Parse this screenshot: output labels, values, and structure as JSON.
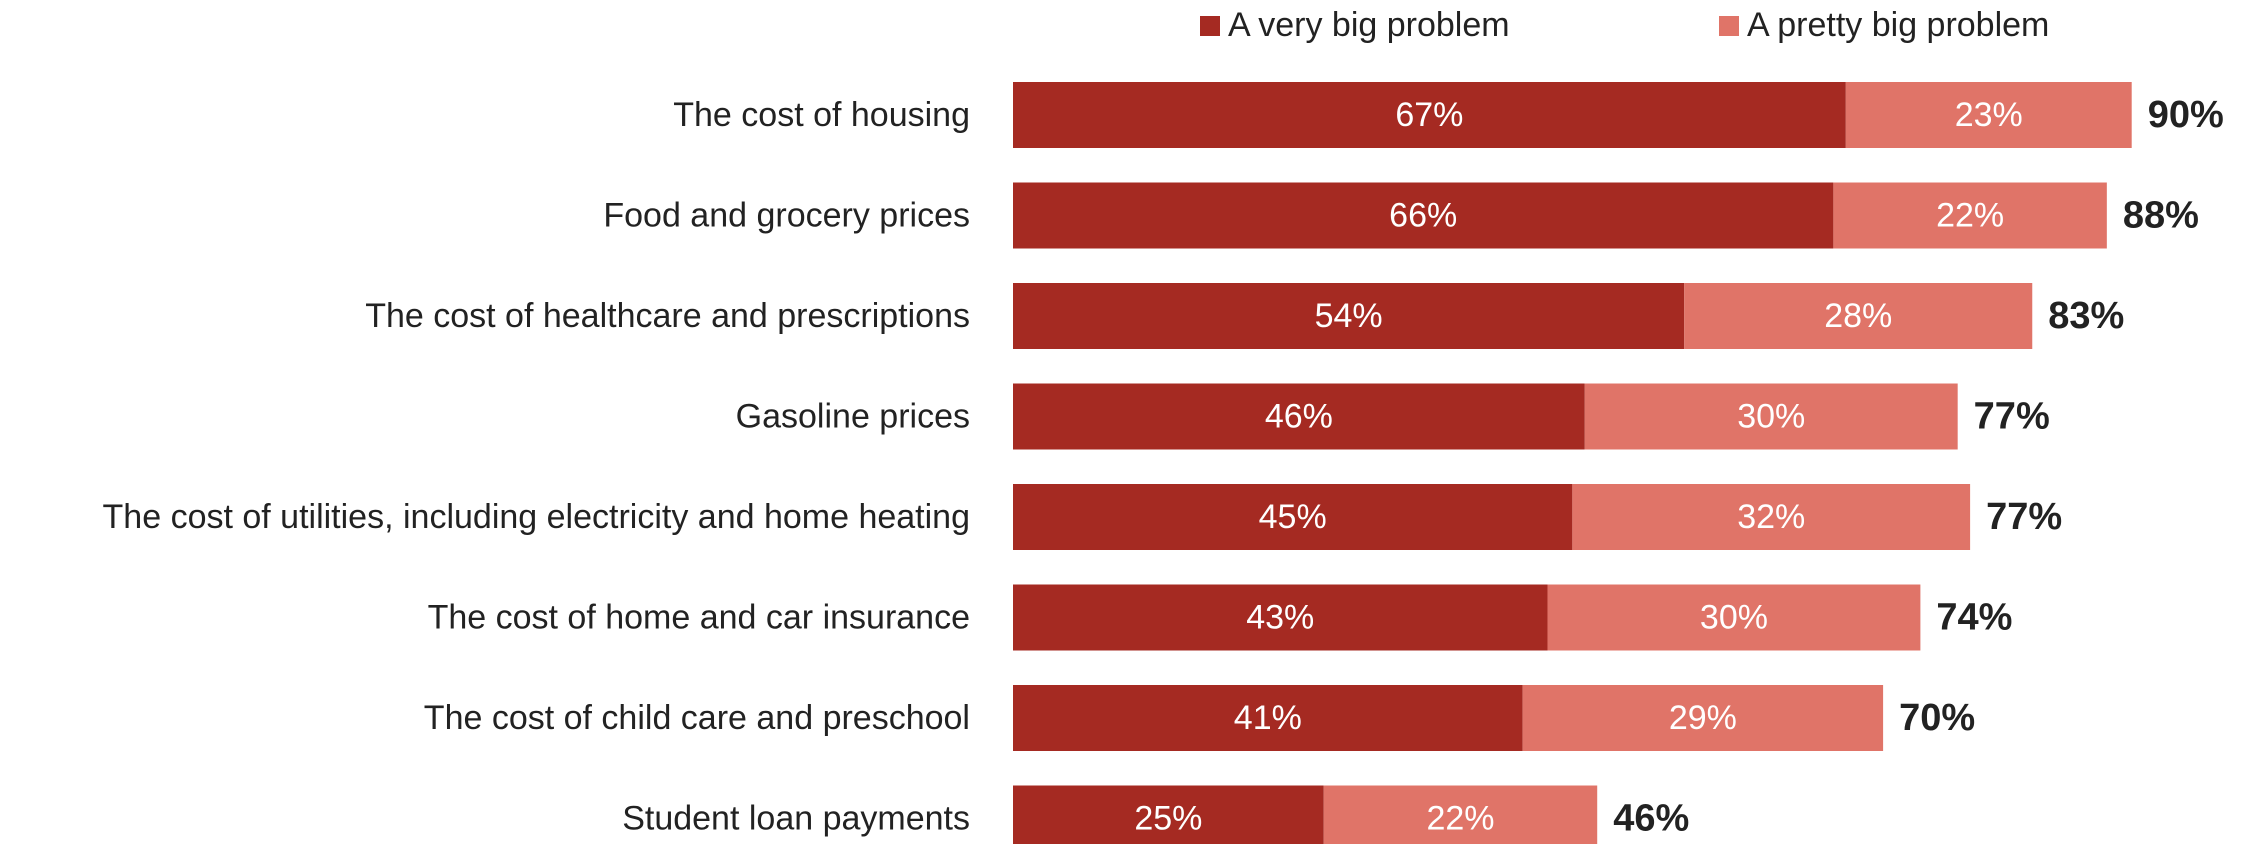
{
  "chart_data": {
    "type": "bar",
    "orientation": "horizontal",
    "stacked": true,
    "categories": [
      "The cost of housing",
      "Food and grocery prices",
      "The cost of healthcare and prescriptions",
      "Gasoline prices",
      "The cost of utilities, including electricity and home heating",
      "The cost of home and car insurance",
      "The cost of child care and preschool",
      "Student loan payments"
    ],
    "series": [
      {
        "name": "A very big problem",
        "color": "#a52a22",
        "values": [
          67,
          66,
          54,
          46,
          45,
          43,
          41,
          25
        ]
      },
      {
        "name": "A pretty big problem",
        "color": "#e07468",
        "values": [
          23,
          22,
          28,
          30,
          32,
          30,
          29,
          22
        ]
      }
    ],
    "totals": [
      90,
      88,
      83,
      77,
      77,
      74,
      70,
      46
    ],
    "value_suffix": "%",
    "legend_position": "top",
    "grid": false,
    "xlim": [
      0,
      100
    ]
  }
}
